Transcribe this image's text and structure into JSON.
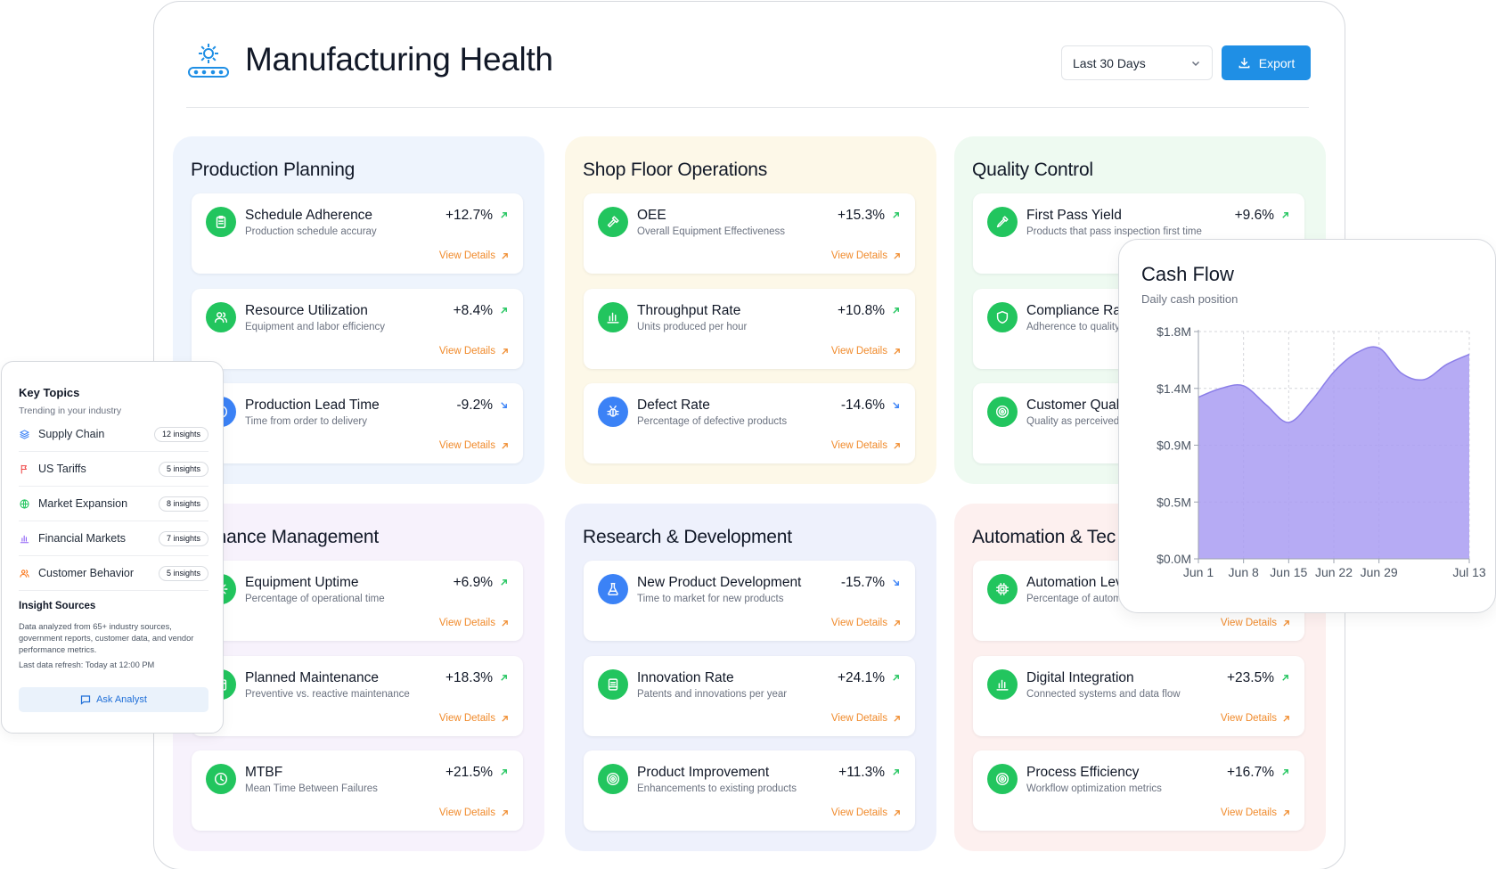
{
  "header": {
    "title": "Manufacturing Health",
    "range": "Last 30 Days",
    "export_label": "Export"
  },
  "sections": [
    {
      "title": "Production Planning",
      "bg": "#eef4fd",
      "cards": [
        {
          "name": "Schedule Adherence",
          "desc": "Production schedule accuray",
          "delta": "+12.7%",
          "trend": "up",
          "icon": "clipboard-icon",
          "color": "#22c55e",
          "view": "View Details"
        },
        {
          "name": "Resource Utilization",
          "desc": "Equipment and labor efficiency",
          "delta": "+8.4%",
          "trend": "up",
          "icon": "users-icon",
          "color": "#22c55e",
          "view": "View Details"
        },
        {
          "name": "Production Lead Time",
          "desc": "Time from order to delivery",
          "delta": "-9.2%",
          "trend": "down",
          "icon": "clock-icon",
          "color": "#3b82f6",
          "view": "View Details"
        }
      ]
    },
    {
      "title": "Shop Floor Operations",
      "bg": "#fdf8e8",
      "cards": [
        {
          "name": "OEE",
          "desc": "Overall Equipment Effectiveness",
          "delta": "+15.3%",
          "trend": "up",
          "icon": "hammer-icon",
          "color": "#22c55e",
          "view": "View Details"
        },
        {
          "name": "Throughput Rate",
          "desc": "Units produced per hour",
          "delta": "+10.8%",
          "trend": "up",
          "icon": "bar-chart-icon",
          "color": "#22c55e",
          "view": "View Details"
        },
        {
          "name": "Defect Rate",
          "desc": "Percentage of defective products",
          "delta": "-14.6%",
          "trend": "down",
          "icon": "bug-icon",
          "color": "#3b82f6",
          "view": "View Details"
        }
      ]
    },
    {
      "title": "Quality Control",
      "bg": "#eefaf1",
      "cards": [
        {
          "name": "First Pass Yield",
          "desc": "Products that pass inspection first time",
          "delta": "+9.6%",
          "trend": "up",
          "icon": "pipette-icon",
          "color": "#22c55e",
          "view": ""
        },
        {
          "name": "Compliance Rat",
          "desc": "Adherence to quality",
          "delta": "",
          "trend": "",
          "icon": "shield-icon",
          "color": "#22c55e",
          "view": ""
        },
        {
          "name": "Customer Quali",
          "desc": "Quality as perceived",
          "delta": "",
          "trend": "",
          "icon": "target-icon",
          "color": "#22c55e",
          "view": ""
        }
      ]
    },
    {
      "title": "ntenance Management",
      "bg": "#f7f2fc",
      "cards": [
        {
          "name": "Equipment Uptime",
          "desc": "Percentage of operational time",
          "delta": "+6.9%",
          "trend": "up",
          "icon": "gear-icon",
          "color": "#22c55e",
          "view": "View Details"
        },
        {
          "name": "Planned Maintenance",
          "desc": "Preventive vs. reactive maintenance",
          "delta": "+18.3%",
          "trend": "up",
          "icon": "calendar-icon",
          "color": "#22c55e",
          "view": "View Details"
        },
        {
          "name": "MTBF",
          "desc": "Mean Time Between Failures",
          "delta": "+21.5%",
          "trend": "up",
          "icon": "clock-icon",
          "color": "#22c55e",
          "view": "View Details"
        }
      ]
    },
    {
      "title": "Research & Development",
      "bg": "#eef1fc",
      "cards": [
        {
          "name": "New Product Development",
          "desc": "Time to market for new products",
          "delta": "-15.7%",
          "trend": "down",
          "icon": "flask-icon",
          "color": "#3b82f6",
          "view": "View Details"
        },
        {
          "name": "Innovation Rate",
          "desc": "Patents and innovations per year",
          "delta": "+24.1%",
          "trend": "up",
          "icon": "patent-icon",
          "color": "#22c55e",
          "view": "View Details"
        },
        {
          "name": "Product Improvement",
          "desc": "Enhancements to existing products",
          "delta": "+11.3%",
          "trend": "up",
          "icon": "target-icon",
          "color": "#22c55e",
          "view": "View Details"
        }
      ]
    },
    {
      "title": "Automation & Tec",
      "bg": "#fdf0ef",
      "cards": [
        {
          "name": "Automation Lev",
          "desc": "Percentage of autom",
          "delta": "",
          "trend": "",
          "icon": "cpu-icon",
          "color": "#22c55e",
          "view": "View Details"
        },
        {
          "name": "Digital Integration",
          "desc": "Connected systems and data flow",
          "delta": "+23.5%",
          "trend": "up",
          "icon": "bar-chart-icon",
          "color": "#22c55e",
          "view": "View Details"
        },
        {
          "name": "Process Efficiency",
          "desc": "Workflow optimization metrics",
          "delta": "+16.7%",
          "trend": "up",
          "icon": "target-icon",
          "color": "#22c55e",
          "view": "View Details"
        }
      ]
    }
  ],
  "topics": {
    "title": "Key Topics",
    "subtitle": "Trending in your industry",
    "items": [
      {
        "label": "Supply Chain",
        "badge": "12 insights",
        "icon": "layers-icon",
        "color": "#3b82f6"
      },
      {
        "label": "US Tariffs",
        "badge": "5 insights",
        "icon": "flag-icon",
        "color": "#ef4444"
      },
      {
        "label": "Market Expansion",
        "badge": "8 insights",
        "icon": "globe-icon",
        "color": "#22c55e"
      },
      {
        "label": "Financial Markets",
        "badge": "7 insights",
        "icon": "bar-chart-icon",
        "color": "#8b5cf6"
      },
      {
        "label": "Customer Behavior",
        "badge": "5 insights",
        "icon": "users-icon",
        "color": "#f97316"
      }
    ],
    "sources_title": "Insight Sources",
    "sources_text": "Data analyzed from 65+ industry sources, government reports, customer data, and vendor performance metrics.",
    "refresh": "Last data refresh: Today at 12:00 PM",
    "ask_label": "Ask Analyst"
  },
  "cashflow": {
    "title": "Cash Flow",
    "subtitle": "Daily cash position"
  },
  "chart_data": {
    "type": "area",
    "title": "Cash Flow",
    "subtitle": "Daily cash position",
    "x": [
      "Jun 1",
      "Jun 5",
      "Jun 8",
      "Jun 12",
      "Jun 15",
      "Jun 19",
      "Jun 22",
      "Jun 26",
      "Jun 29",
      "Jul 3",
      "Jul 6",
      "Jul 10",
      "Jul 13"
    ],
    "values": [
      1.28,
      1.35,
      1.37,
      1.22,
      1.08,
      1.25,
      1.48,
      1.63,
      1.67,
      1.47,
      1.42,
      1.54,
      1.62
    ],
    "xticks": [
      "Jun 1",
      "Jun 8",
      "Jun 15",
      "Jun 22",
      "Jun 29",
      "Jul 13"
    ],
    "yticks": [
      "$0.0M",
      "$0.5M",
      "$0.9M",
      "$1.4M",
      "$1.8M"
    ],
    "ylim": [
      0,
      1.8
    ],
    "grid": true,
    "fill_color": "#a99cf2",
    "line_color": "#8b7ee8"
  }
}
